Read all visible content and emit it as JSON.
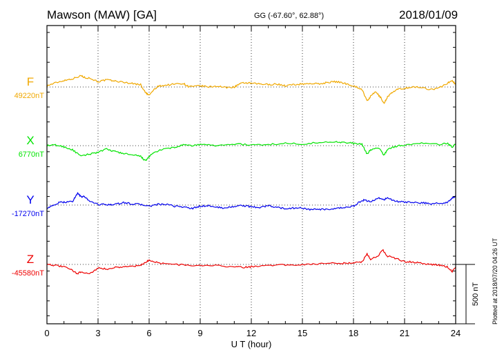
{
  "header": {
    "station": "Mawson (MAW)  [GA]",
    "coords": "GG (-67.60°,  62.88°)",
    "date": "2018/01/09"
  },
  "plotted_note": "Plotted at 2018/07/20 04:26 UT",
  "chart_data": {
    "type": "line",
    "title": "Mawson (MAW)  [GA]",
    "xlabel": "U T (hour)",
    "xlim": [
      0,
      24
    ],
    "xticks": [
      "0",
      "3",
      "6",
      "9",
      "12",
      "15",
      "18",
      "21",
      "24"
    ],
    "grid": true,
    "scale_bar": {
      "label": "500 nT",
      "value_nT": 500
    },
    "series": [
      {
        "name": "F",
        "baseline_label": "49220nT",
        "baseline_nT": 49220,
        "color": "#f0a800",
        "points": [
          [
            0,
            49230
          ],
          [
            0.5,
            49255
          ],
          [
            1,
            49275
          ],
          [
            1.5,
            49290
          ],
          [
            2,
            49315
          ],
          [
            2.2,
            49300
          ],
          [
            2.5,
            49295
          ],
          [
            3,
            49265
          ],
          [
            3.5,
            49280
          ],
          [
            4,
            49270
          ],
          [
            4.5,
            49260
          ],
          [
            5,
            49250
          ],
          [
            5.5,
            49240
          ],
          [
            5.8,
            49170
          ],
          [
            6,
            49150
          ],
          [
            6.3,
            49200
          ],
          [
            6.6,
            49230
          ],
          [
            7,
            49235
          ],
          [
            7.5,
            49245
          ],
          [
            8,
            49250
          ],
          [
            8.3,
            49225
          ],
          [
            8.7,
            49225
          ],
          [
            9,
            49230
          ],
          [
            9.5,
            49220
          ],
          [
            10,
            49228
          ],
          [
            10.5,
            49215
          ],
          [
            11,
            49220
          ],
          [
            11.3,
            49245
          ],
          [
            11.6,
            49255
          ],
          [
            12,
            49250
          ],
          [
            12.5,
            49245
          ],
          [
            13,
            49240
          ],
          [
            13.5,
            49245
          ],
          [
            14,
            49230
          ],
          [
            14.5,
            49240
          ],
          [
            15,
            49245
          ],
          [
            15.5,
            49250
          ],
          [
            16,
            49245
          ],
          [
            16.5,
            49260
          ],
          [
            17,
            49265
          ],
          [
            17.5,
            49250
          ],
          [
            18,
            49230
          ],
          [
            18.5,
            49200
          ],
          [
            18.8,
            49100
          ],
          [
            19,
            49140
          ],
          [
            19.3,
            49180
          ],
          [
            19.6,
            49130
          ],
          [
            19.8,
            49080
          ],
          [
            20,
            49140
          ],
          [
            20.3,
            49175
          ],
          [
            20.6,
            49200
          ],
          [
            21,
            49210
          ],
          [
            21.5,
            49220
          ],
          [
            22,
            49215
          ],
          [
            22.5,
            49200
          ],
          [
            23,
            49210
          ],
          [
            23.5,
            49250
          ],
          [
            23.8,
            49275
          ],
          [
            24,
            49240
          ]
        ]
      },
      {
        "name": "X",
        "baseline_label": "6770nT",
        "baseline_nT": 6770,
        "color": "#00e400",
        "points": [
          [
            0,
            6770
          ],
          [
            0.5,
            6775
          ],
          [
            1,
            6760
          ],
          [
            1.5,
            6735
          ],
          [
            2,
            6680
          ],
          [
            2.5,
            6700
          ],
          [
            3,
            6715
          ],
          [
            3.5,
            6740
          ],
          [
            4,
            6720
          ],
          [
            4.5,
            6705
          ],
          [
            5,
            6690
          ],
          [
            5.5,
            6680
          ],
          [
            5.8,
            6640
          ],
          [
            6,
            6680
          ],
          [
            6.4,
            6720
          ],
          [
            7,
            6745
          ],
          [
            7.5,
            6755
          ],
          [
            8,
            6775
          ],
          [
            8.5,
            6770
          ],
          [
            9,
            6780
          ],
          [
            10,
            6770
          ],
          [
            11,
            6785
          ],
          [
            12,
            6775
          ],
          [
            13,
            6780
          ],
          [
            14,
            6790
          ],
          [
            15,
            6785
          ],
          [
            16,
            6795
          ],
          [
            17,
            6805
          ],
          [
            17.5,
            6795
          ],
          [
            18,
            6790
          ],
          [
            18.5,
            6780
          ],
          [
            18.8,
            6700
          ],
          [
            19,
            6735
          ],
          [
            19.5,
            6750
          ],
          [
            19.8,
            6690
          ],
          [
            20,
            6740
          ],
          [
            20.5,
            6765
          ],
          [
            21,
            6775
          ],
          [
            22,
            6790
          ],
          [
            23,
            6780
          ],
          [
            23.5,
            6790
          ],
          [
            23.8,
            6760
          ],
          [
            24,
            6785
          ]
        ]
      },
      {
        "name": "Y",
        "baseline_label": "-17270nT",
        "baseline_nT": -17270,
        "color": "#0000ee",
        "points": [
          [
            0,
            -17295
          ],
          [
            0.3,
            -17280
          ],
          [
            0.7,
            -17250
          ],
          [
            1,
            -17245
          ],
          [
            1.5,
            -17240
          ],
          [
            1.8,
            -17170
          ],
          [
            2,
            -17200
          ],
          [
            2.2,
            -17200
          ],
          [
            2.5,
            -17235
          ],
          [
            3,
            -17265
          ],
          [
            3.5,
            -17265
          ],
          [
            4,
            -17265
          ],
          [
            4.5,
            -17250
          ],
          [
            5,
            -17260
          ],
          [
            5.5,
            -17265
          ],
          [
            6,
            -17280
          ],
          [
            6.5,
            -17265
          ],
          [
            7,
            -17265
          ],
          [
            7.5,
            -17280
          ],
          [
            8,
            -17285
          ],
          [
            8.5,
            -17300
          ],
          [
            9,
            -17280
          ],
          [
            9.5,
            -17275
          ],
          [
            10,
            -17290
          ],
          [
            10.5,
            -17295
          ],
          [
            11,
            -17280
          ],
          [
            11.5,
            -17275
          ],
          [
            12,
            -17285
          ],
          [
            12.5,
            -17290
          ],
          [
            13,
            -17275
          ],
          [
            13.5,
            -17290
          ],
          [
            14,
            -17300
          ],
          [
            14.5,
            -17295
          ],
          [
            15,
            -17295
          ],
          [
            15.5,
            -17310
          ],
          [
            16,
            -17305
          ],
          [
            16.5,
            -17310
          ],
          [
            17,
            -17300
          ],
          [
            17.5,
            -17290
          ],
          [
            18,
            -17280
          ],
          [
            18.3,
            -17250
          ],
          [
            18.6,
            -17230
          ],
          [
            19,
            -17240
          ],
          [
            19.5,
            -17210
          ],
          [
            19.8,
            -17225
          ],
          [
            20,
            -17210
          ],
          [
            20.5,
            -17240
          ],
          [
            21,
            -17245
          ],
          [
            21.5,
            -17250
          ],
          [
            22,
            -17250
          ],
          [
            22.5,
            -17260
          ],
          [
            23,
            -17255
          ],
          [
            23.5,
            -17250
          ],
          [
            23.8,
            -17210
          ],
          [
            24,
            -17200
          ]
        ]
      },
      {
        "name": "Z",
        "baseline_label": "-45580nT",
        "baseline_nT": -45580,
        "color": "#ee0000",
        "points": [
          [
            0,
            -45575
          ],
          [
            0.5,
            -45590
          ],
          [
            1,
            -45600
          ],
          [
            1.5,
            -45630
          ],
          [
            1.8,
            -45660
          ],
          [
            2,
            -45640
          ],
          [
            2.5,
            -45660
          ],
          [
            3,
            -45610
          ],
          [
            3.5,
            -45620
          ],
          [
            4,
            -45605
          ],
          [
            4.5,
            -45600
          ],
          [
            5,
            -45595
          ],
          [
            5.5,
            -45590
          ],
          [
            5.8,
            -45560
          ],
          [
            6,
            -45545
          ],
          [
            6.5,
            -45565
          ],
          [
            7,
            -45575
          ],
          [
            8,
            -45585
          ],
          [
            9,
            -45590
          ],
          [
            10,
            -45590
          ],
          [
            11,
            -45600
          ],
          [
            11.5,
            -45605
          ],
          [
            12,
            -45600
          ],
          [
            13,
            -45585
          ],
          [
            14,
            -45585
          ],
          [
            15,
            -45580
          ],
          [
            16,
            -45575
          ],
          [
            17,
            -45570
          ],
          [
            17.5,
            -45570
          ],
          [
            18,
            -45565
          ],
          [
            18.5,
            -45560
          ],
          [
            18.8,
            -45490
          ],
          [
            19,
            -45540
          ],
          [
            19.5,
            -45500
          ],
          [
            19.7,
            -45455
          ],
          [
            20,
            -45510
          ],
          [
            20.5,
            -45530
          ],
          [
            21,
            -45555
          ],
          [
            21.5,
            -45560
          ],
          [
            22,
            -45570
          ],
          [
            22.5,
            -45580
          ],
          [
            23,
            -45585
          ],
          [
            23.5,
            -45600
          ],
          [
            23.8,
            -45640
          ],
          [
            24,
            -45600
          ]
        ]
      }
    ]
  }
}
